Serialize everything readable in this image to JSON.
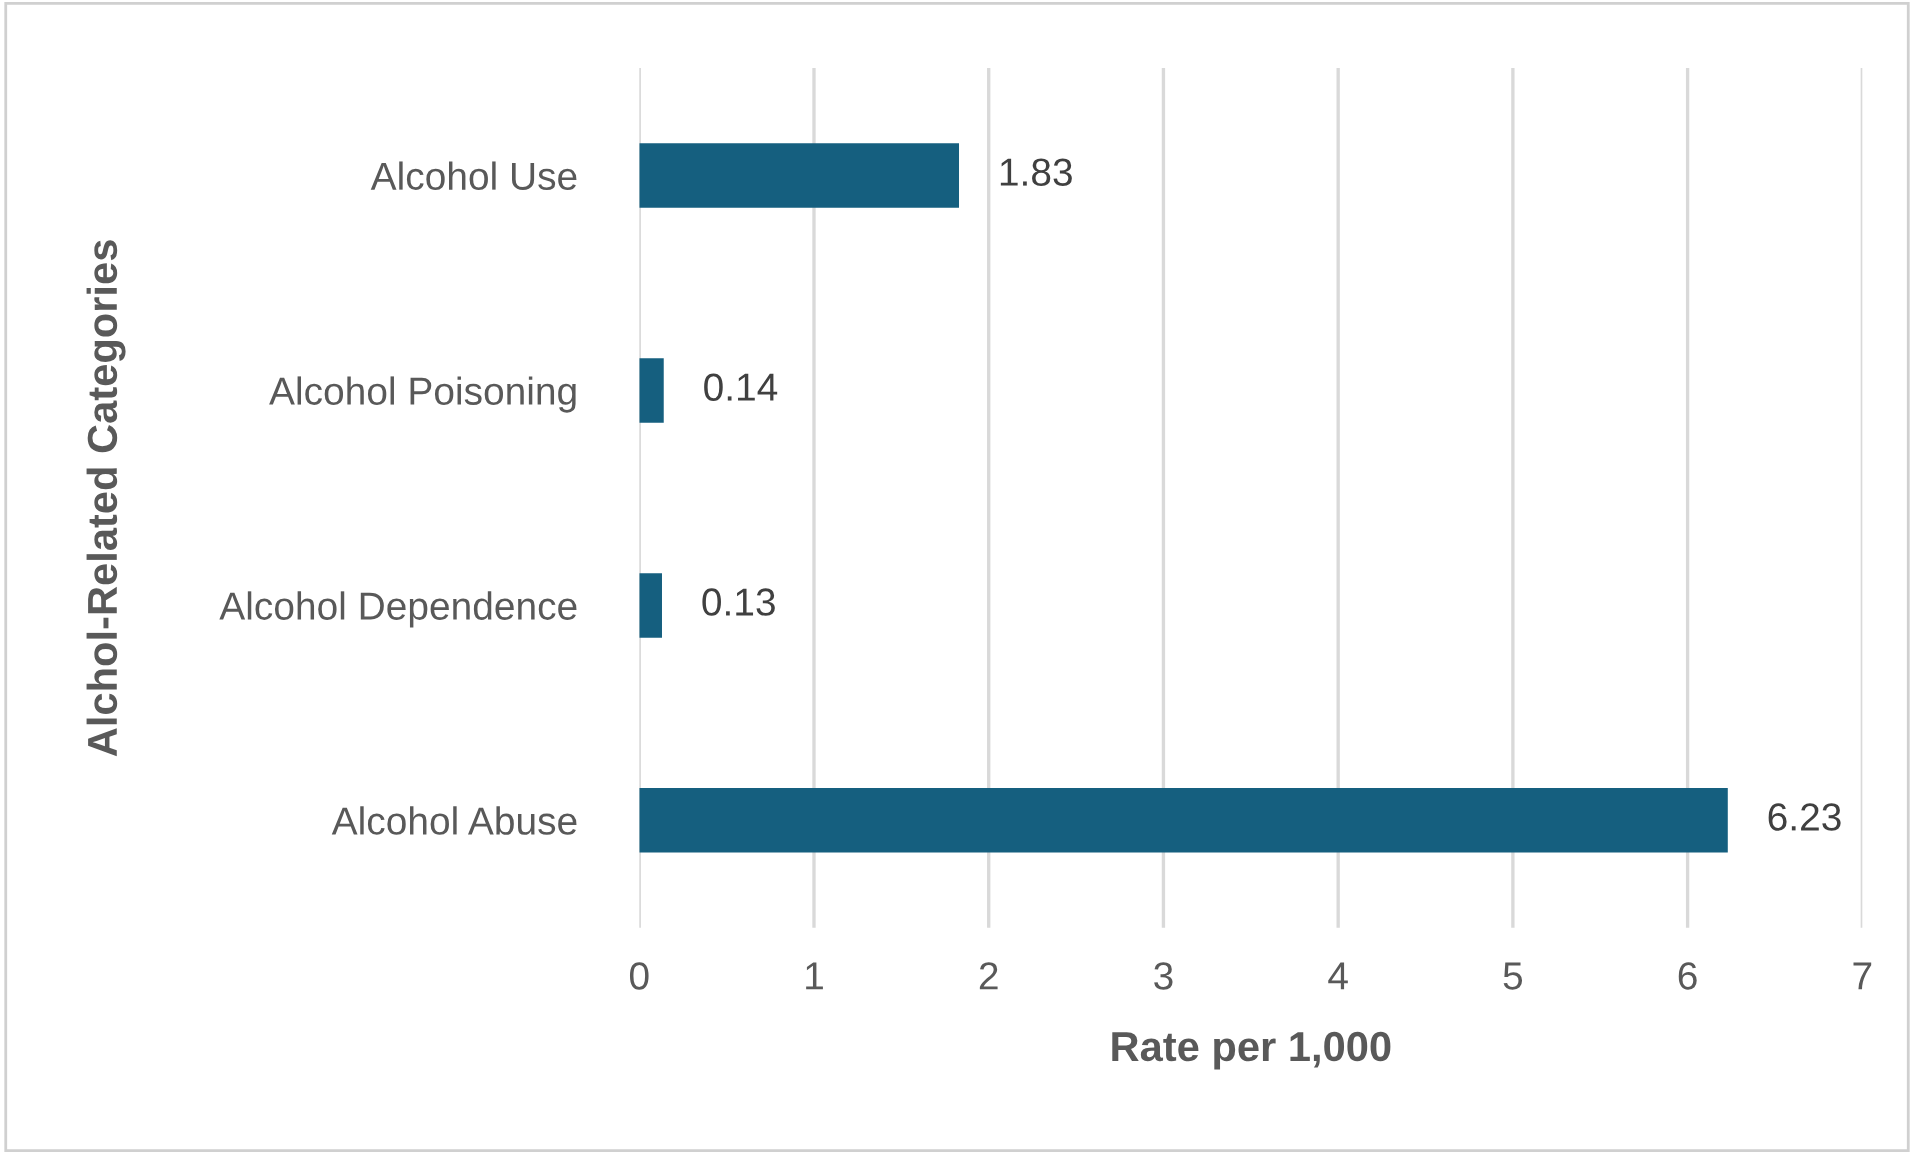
{
  "chart_data": {
    "type": "bar",
    "orientation": "horizontal",
    "xlabel": "Rate per 1,000",
    "ylabel": "Alchol-Related Categories",
    "categories": [
      "Alcohol Use",
      "Alcohol Poisoning",
      "Alcohol Dependence",
      "Alcohol Abuse"
    ],
    "values": [
      1.83,
      0.14,
      0.13,
      6.23
    ],
    "color": "#155f7f",
    "xlim": [
      0,
      7
    ],
    "xticks": [
      0,
      1,
      2,
      3,
      4,
      5,
      6,
      7
    ],
    "grid": "x",
    "data_labels": true
  }
}
